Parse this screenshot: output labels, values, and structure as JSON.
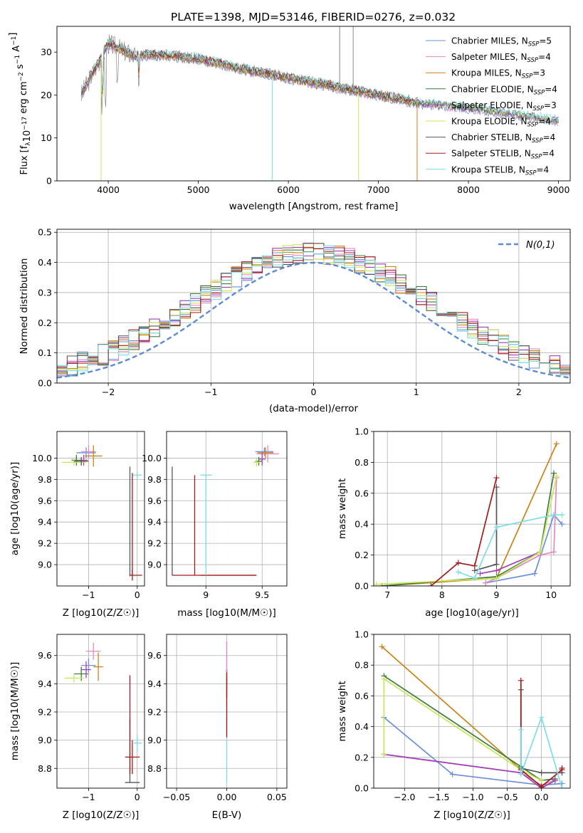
{
  "title": "PLATE=1398, MJD=53146, FIBERID=0276, z=0.032",
  "models": [
    {
      "label": "Chabrier MILES, N$_{SSP}$=5",
      "color": "#6a8fdb"
    },
    {
      "label": "Salpeter MILES, N$_{SSP}$=4",
      "color": "#e58ac0"
    },
    {
      "label": "Kroupa MILES, N$_{SSP}$=3",
      "color": "#c88318"
    },
    {
      "label": "Chabrier ELODIE, N$_{SSP}$=4",
      "color": "#3c7d3c"
    },
    {
      "label": "Salpeter ELODIE, N$_{SSP}$=3",
      "color": "#a040b8"
    },
    {
      "label": "Kroupa ELODIE, N$_{SSP}$=4",
      "color": "#c8e65a"
    },
    {
      "label": "Chabrier STELIB, N$_{SSP}$=4",
      "color": "#555555"
    },
    {
      "label": "Salpeter STELIB, N$_{SSP}$=4",
      "color": "#a01c1c"
    },
    {
      "label": "Kroupa STELIB, N$_{SSP}$=4",
      "color": "#7ddde6"
    }
  ],
  "legend_labels": [
    [
      "Chabrier MILES, N",
      "SSP",
      "=5"
    ],
    [
      "Salpeter MILES, N",
      "SSP",
      "=4"
    ],
    [
      "Kroupa MILES, N",
      "SSP",
      "=3"
    ],
    [
      "Chabrier ELODIE, N",
      "SSP",
      "=4"
    ],
    [
      "Salpeter ELODIE, N",
      "SSP",
      "=3"
    ],
    [
      "Kroupa ELODIE, N",
      "SSP",
      "=4"
    ],
    [
      "Chabrier STELIB, N",
      "SSP",
      "=4"
    ],
    [
      "Salpeter STELIB, N",
      "SSP",
      "=4"
    ],
    [
      "Kroupa STELIB, N",
      "SSP",
      "=4"
    ]
  ],
  "chart_data": [
    {
      "id": "spectrum",
      "type": "line",
      "xlabel": "wavelength [Angstrom, rest frame]",
      "ylabel": "Flux [f_λ 10^-17 erg cm^-2 s^-1 A^-1]",
      "xlim": [
        3430,
        9130
      ],
      "ylim": [
        0,
        36
      ],
      "xticks": [
        4000,
        5000,
        6000,
        7000,
        8000,
        9000
      ],
      "yticks": [
        0,
        10,
        20,
        30
      ],
      "continuum": [
        [
          3700,
          20
        ],
        [
          3900,
          28
        ],
        [
          4000,
          32
        ],
        [
          4100,
          31
        ],
        [
          4300,
          29
        ],
        [
          4500,
          29.5
        ],
        [
          5000,
          28.5
        ],
        [
          5500,
          26
        ],
        [
          6000,
          24
        ],
        [
          6500,
          22
        ],
        [
          7000,
          20
        ],
        [
          7500,
          18
        ],
        [
          8000,
          17
        ],
        [
          8500,
          15.5
        ],
        [
          9000,
          14
        ]
      ],
      "spikes": [
        {
          "x": 5820,
          "y": 0,
          "color": "#7ddde6"
        },
        {
          "x": 3920,
          "y": 0,
          "color": "#c8e65a"
        },
        {
          "x": 6780,
          "y": 0,
          "color": "#c8e65a"
        },
        {
          "x": 7430,
          "y": 0,
          "color": "#e0772a"
        },
        {
          "x": 6570,
          "y": 36,
          "color": "#888888"
        },
        {
          "x": 6720,
          "y": 36,
          "color": "#888888"
        }
      ]
    },
    {
      "id": "residuals",
      "type": "step",
      "xlabel": "(data-model)/error",
      "ylabel": "Normed distribution",
      "xlim": [
        -2.5,
        2.5
      ],
      "ylim": [
        0,
        0.51
      ],
      "xticks": [
        -2,
        -1,
        0,
        1,
        2
      ],
      "yticks": [
        0,
        0.1,
        0.2,
        0.3,
        0.4,
        0.5
      ],
      "ytick_labels": [
        "0.0",
        "0.1",
        "0.2",
        "0.3",
        "0.4",
        "0.5"
      ],
      "gaussian_label": "N(0,1)",
      "gaussian_color": "#5b8ad8",
      "bin_width": 0.1
    },
    {
      "id": "age_vs_Z",
      "type": "errorbar",
      "xlabel": "Z [log10(Z/Z☉)]",
      "ylabel": "age [log10(age/yr)]",
      "xlim": [
        -1.65,
        0.15
      ],
      "ylim": [
        8.8,
        10.25
      ],
      "xticks": [
        -1,
        0
      ],
      "yticks": [
        9.0,
        9.2,
        9.4,
        9.6,
        9.8,
        10.0
      ],
      "points": [
        {
          "c": 0,
          "x": -1.05,
          "y": 10.05,
          "xe": 0.2,
          "ye": 0.05
        },
        {
          "c": 1,
          "x": -1.0,
          "y": 10.06,
          "xe": 0.15,
          "ye": 0.06
        },
        {
          "c": 2,
          "x": -0.9,
          "y": 10.02,
          "xe": 0.18,
          "ye": 0.1
        },
        {
          "c": 3,
          "x": -1.25,
          "y": 9.98,
          "xe": 0.1,
          "ye": 0.05
        },
        {
          "c": 4,
          "x": -1.1,
          "y": 9.98,
          "xe": 0.08,
          "ye": 0.05
        },
        {
          "c": 5,
          "x": -1.3,
          "y": 9.96,
          "xe": 0.25,
          "ye": 0.03
        },
        {
          "c": 6,
          "x": -1.15,
          "y": 9.97,
          "xe": 0.15,
          "ye": 0.04
        },
        {
          "c": 6,
          "x": -0.15,
          "y": 8.9,
          "xe": 0.0,
          "ye": 0.01
        },
        {
          "c": 7,
          "x": -0.1,
          "y": 8.9,
          "xe": 0.0,
          "ye": 0.05
        },
        {
          "c": 8,
          "x": 0.0,
          "y": 9.84,
          "xe": 0.1,
          "ye": 0.03
        }
      ]
    },
    {
      "id": "age_vs_mass",
      "type": "errorbar",
      "xlabel": "mass [log10(M/M☉)]",
      "ylabel": "",
      "xlim": [
        8.65,
        9.72
      ],
      "ylim": [
        8.8,
        10.25
      ],
      "xticks": [
        9.0,
        9.5
      ],
      "yticks": [
        9.0,
        9.2,
        9.4,
        9.6,
        9.8,
        10.0
      ],
      "points": [
        {
          "c": 0,
          "x": 9.52,
          "y": 10.06,
          "xe": 0.08,
          "ye": 0.04
        },
        {
          "c": 1,
          "x": 9.55,
          "y": 10.04,
          "xe": 0.1,
          "ye": 0.08
        },
        {
          "c": 2,
          "x": 9.53,
          "y": 10.05,
          "xe": 0.07,
          "ye": 0.05
        },
        {
          "c": 3,
          "x": 9.47,
          "y": 9.97,
          "xe": 0.03,
          "ye": 0.04
        },
        {
          "c": 4,
          "x": 9.5,
          "y": 9.99,
          "xe": 0.03,
          "ye": 0.06
        },
        {
          "c": 5,
          "x": 9.45,
          "y": 9.96,
          "xe": 0.03,
          "ye": 0.04
        },
        {
          "c": 6,
          "x": 8.7,
          "y": 8.9,
          "xe": 0.0,
          "ye": 0.0
        },
        {
          "c": 7,
          "x": 9.2,
          "y": 8.9,
          "xe": 0.25,
          "ye": 0.0
        },
        {
          "c": 8,
          "x": 9.0,
          "y": 9.84,
          "xe": 0.05,
          "ye": 0.0
        }
      ]
    },
    {
      "id": "weight_vs_age",
      "type": "line",
      "xlabel": "age [log10(age/yr)]",
      "ylabel": "mass weight",
      "xlim": [
        6.75,
        10.35
      ],
      "ylim": [
        0,
        1.0
      ],
      "xticks": [
        7,
        8,
        9,
        10
      ],
      "yticks": [
        0,
        0.2,
        0.4,
        0.6,
        0.8,
        1.0
      ],
      "ytick_labels": [
        "0.0",
        "0.2",
        "0.4",
        "0.6",
        "0.8",
        "1.0"
      ],
      "series": [
        {
          "c": 0,
          "x": [
            8.8,
            9.7,
            10.05,
            10.2
          ],
          "y": [
            0.02,
            0.08,
            0.46,
            0.4
          ]
        },
        {
          "c": 1,
          "x": [
            8.8,
            9.0,
            9.8,
            10.05,
            10.1
          ],
          "y": [
            0.02,
            0.05,
            0.2,
            0.22,
            0.7
          ]
        },
        {
          "c": 2,
          "x": [
            6.9,
            9.0,
            10.1
          ],
          "y": [
            0.0,
            0.05,
            0.92
          ]
        },
        {
          "c": 3,
          "x": [
            6.9,
            9.0,
            9.8,
            10.05
          ],
          "y": [
            0.0,
            0.06,
            0.22,
            0.73
          ]
        },
        {
          "c": 4,
          "x": [
            8.7,
            9.0,
            9.8
          ],
          "y": [
            0.08,
            0.1,
            0.22
          ]
        },
        {
          "c": 5,
          "x": [
            6.8,
            9.0,
            9.8,
            10.1
          ],
          "y": [
            0.01,
            0.05,
            0.22,
            0.71
          ]
        },
        {
          "c": 6,
          "x": [
            8.6,
            9.0,
            9.0
          ],
          "y": [
            0.1,
            0.14,
            0.64
          ]
        },
        {
          "c": 7,
          "x": [
            7.8,
            8.3,
            8.6,
            9.0
          ],
          "y": [
            0.0,
            0.15,
            0.13,
            0.7
          ]
        },
        {
          "c": 8,
          "x": [
            8.3,
            8.6,
            9.0,
            10.05,
            10.2
          ],
          "y": [
            0.09,
            0.05,
            0.38,
            0.46,
            0.46
          ]
        }
      ]
    },
    {
      "id": "mass_vs_Z",
      "type": "errorbar",
      "xlabel": "Z [log10(Z/Z☉)]",
      "ylabel": "mass [log10(M/M☉)]",
      "xlim": [
        -1.65,
        0.15
      ],
      "ylim": [
        8.66,
        9.75
      ],
      "xticks": [
        -1,
        0
      ],
      "yticks": [
        8.8,
        9.0,
        9.2,
        9.4,
        9.6
      ],
      "points": [
        {
          "c": 0,
          "x": -1.0,
          "y": 9.53,
          "xe": 0.15,
          "ye": 0.05
        },
        {
          "c": 1,
          "x": -0.9,
          "y": 9.63,
          "xe": 0.15,
          "ye": 0.06
        },
        {
          "c": 2,
          "x": -0.8,
          "y": 9.52,
          "xe": 0.1,
          "ye": 0.1
        },
        {
          "c": 3,
          "x": -1.15,
          "y": 9.47,
          "xe": 0.15,
          "ye": 0.05
        },
        {
          "c": 4,
          "x": -1.05,
          "y": 9.5,
          "xe": 0.1,
          "ye": 0.06
        },
        {
          "c": 5,
          "x": -1.3,
          "y": 9.44,
          "xe": 0.2,
          "ye": 0.03
        },
        {
          "c": 6,
          "x": -0.1,
          "y": 8.7,
          "xe": 0.15,
          "ye": 0.0
        },
        {
          "c": 7,
          "x": -0.1,
          "y": 8.88,
          "xe": 0.15,
          "ye": 0.12
        },
        {
          "c": 8,
          "x": 0.0,
          "y": 8.98,
          "xe": 0.1,
          "ye": 0.06
        }
      ]
    },
    {
      "id": "mass_vs_EBV",
      "type": "errorbar",
      "xlabel": "E(B-V)",
      "ylabel": "",
      "xlim": [
        -0.06,
        0.06
      ],
      "ylim": [
        8.66,
        9.75
      ],
      "xticks": [
        -0.05,
        0.0,
        0.05
      ],
      "xtick_labels": [
        "−0.05",
        "0.00",
        "0.05"
      ],
      "yticks": [
        8.8,
        9.0,
        9.2,
        9.4,
        9.6
      ],
      "points": [
        {
          "c": 1,
          "x": 0.0,
          "y": 9.6,
          "xe": 0.0,
          "ye": 0.1
        },
        {
          "c": 7,
          "x": 0.0,
          "y": 9.4,
          "xe": 0.0,
          "ye": 0.1
        },
        {
          "c": 8,
          "x": 0.0,
          "y": 8.85,
          "xe": 0.0,
          "ye": 0.15
        }
      ]
    },
    {
      "id": "weight_vs_Z",
      "type": "line",
      "xlabel": "Z [log10(Z/Z☉)]",
      "ylabel": "mass weight",
      "xlim": [
        -2.45,
        0.42
      ],
      "ylim": [
        0,
        1.0
      ],
      "xticks": [
        -2.0,
        -1.5,
        -1.0,
        -0.5,
        0.0
      ],
      "xtick_labels": [
        "−2.0",
        "−1.5",
        "−1.0",
        "−0.5",
        "0.0"
      ],
      "yticks": [
        0,
        0.2,
        0.4,
        0.6,
        0.8,
        1.0
      ],
      "ytick_labels": [
        "0.0",
        "0.2",
        "0.4",
        "0.6",
        "0.8",
        "1.0"
      ],
      "series": [
        {
          "c": 0,
          "x": [
            -2.3,
            -1.3,
            0.0,
            0.3
          ],
          "y": [
            0.46,
            0.09,
            0.02,
            0.03
          ]
        },
        {
          "c": 1,
          "x": [
            -2.3,
            -0.3,
            0.0,
            0.2
          ],
          "y": [
            0.22,
            0.1,
            0.02,
            0.05
          ]
        },
        {
          "c": 2,
          "x": [
            -2.33,
            -0.3,
            0.0
          ],
          "y": [
            0.92,
            0.12,
            0.01
          ]
        },
        {
          "c": 3,
          "x": [
            -2.3,
            -0.3,
            0.0,
            0.2
          ],
          "y": [
            0.73,
            0.14,
            0.05,
            0.06
          ]
        },
        {
          "c": 4,
          "x": [
            -2.3,
            -0.3,
            0.0,
            0.2
          ],
          "y": [
            0.22,
            0.1,
            0.0,
            0.05
          ]
        },
        {
          "c": 5,
          "x": [
            -2.3,
            -2.3,
            -0.3,
            0.0
          ],
          "y": [
            0.22,
            0.71,
            0.12,
            0.05
          ]
        },
        {
          "c": 6,
          "x": [
            -0.3,
            -0.3,
            0.0,
            0.3
          ],
          "y": [
            0.64,
            0.13,
            0.1,
            0.1
          ]
        },
        {
          "c": 7,
          "x": [
            -0.3,
            -0.3,
            0.0,
            0.3,
            0.3
          ],
          "y": [
            0.7,
            0.12,
            0.01,
            0.12,
            0.13
          ]
        },
        {
          "c": 8,
          "x": [
            -0.3,
            -0.3,
            0.0,
            0.3
          ],
          "y": [
            0.38,
            0.09,
            0.46,
            0.0
          ]
        }
      ]
    }
  ]
}
